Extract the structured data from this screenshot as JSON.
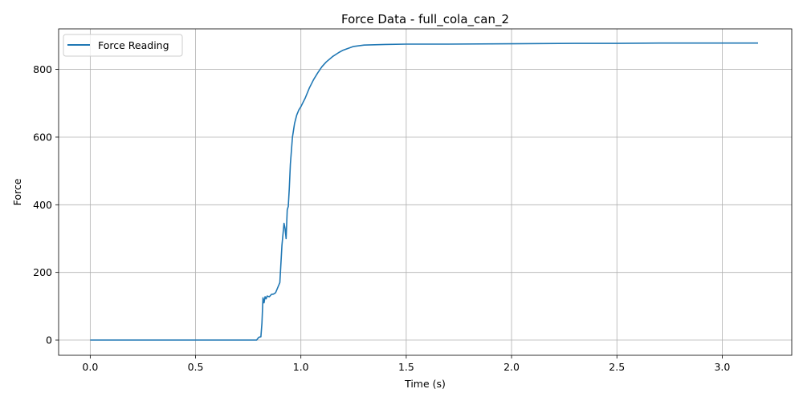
{
  "chart_data": {
    "type": "line",
    "title": "Force Data - full_cola_can_2",
    "xlabel": "Time (s)",
    "ylabel": "Force",
    "xlim": [
      -0.15,
      3.33
    ],
    "ylim": [
      -45,
      920
    ],
    "xticks": [
      0.0,
      0.5,
      1.0,
      1.5,
      2.0,
      2.5,
      3.0
    ],
    "xtick_labels": [
      "0.0",
      "0.5",
      "1.0",
      "1.5",
      "2.0",
      "2.5",
      "3.0"
    ],
    "yticks": [
      0,
      200,
      400,
      600,
      800
    ],
    "ytick_labels": [
      "0",
      "200",
      "400",
      "600",
      "800"
    ],
    "grid": true,
    "legend_position": "top-left",
    "series": [
      {
        "name": "Force Reading",
        "color": "#1f77b4",
        "x": [
          0.0,
          0.2,
          0.4,
          0.6,
          0.79,
          0.8,
          0.81,
          0.815,
          0.82,
          0.825,
          0.83,
          0.835,
          0.84,
          0.85,
          0.86,
          0.87,
          0.88,
          0.9,
          0.91,
          0.92,
          0.925,
          0.93,
          0.935,
          0.94,
          0.945,
          0.95,
          0.96,
          0.97,
          0.98,
          0.99,
          1.0,
          1.02,
          1.04,
          1.06,
          1.08,
          1.1,
          1.12,
          1.15,
          1.18,
          1.2,
          1.25,
          1.3,
          1.35,
          1.4,
          1.5,
          1.7,
          2.0,
          2.3,
          2.5,
          2.7,
          3.0,
          3.17
        ],
        "y": [
          0,
          0,
          0,
          0,
          0,
          8,
          10,
          50,
          125,
          110,
          128,
          122,
          130,
          128,
          135,
          136,
          140,
          170,
          280,
          345,
          330,
          300,
          385,
          395,
          450,
          520,
          600,
          640,
          665,
          680,
          690,
          715,
          745,
          770,
          790,
          808,
          822,
          838,
          850,
          857,
          868,
          872,
          873,
          874,
          875,
          875,
          876,
          877,
          877,
          878,
          878,
          878
        ]
      }
    ]
  }
}
